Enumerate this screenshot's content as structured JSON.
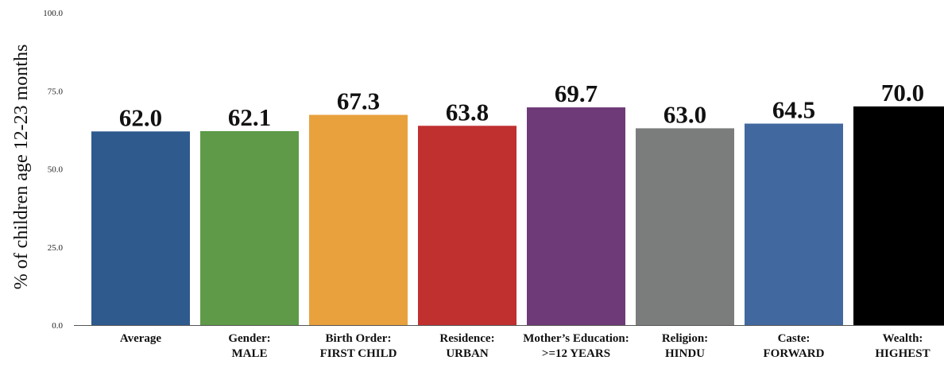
{
  "chart_data": {
    "type": "bar",
    "title": "",
    "xlabel": "",
    "ylabel": "% of children age 12-23 months",
    "ylim": [
      0,
      100
    ],
    "yticks": [
      "0.0",
      "25.0",
      "50.0",
      "75.0",
      "100.0"
    ],
    "ytick_values": [
      0,
      25,
      50,
      75,
      100
    ],
    "grid": false,
    "categories": [
      [
        "Average"
      ],
      [
        "Gender:",
        "MALE"
      ],
      [
        "Birth Order:",
        "FIRST CHILD"
      ],
      [
        "Residence:",
        "URBAN"
      ],
      [
        "Mother’s Education:",
        ">=12 YEARS"
      ],
      [
        "Religion:",
        "HINDU"
      ],
      [
        "Caste:",
        "FORWARD"
      ],
      [
        "Wealth:",
        "HIGHEST"
      ]
    ],
    "values": [
      62.0,
      62.1,
      67.3,
      63.8,
      69.7,
      63.0,
      64.5,
      70.0
    ],
    "value_labels": [
      "62.0",
      "62.1",
      "67.3",
      "63.8",
      "69.7",
      "63.0",
      "64.5",
      "70.0"
    ],
    "colors": [
      "#2E5A8E",
      "#5E9A48",
      "#E8A13C",
      "#C0302F",
      "#6E3A78",
      "#7B7D7D",
      "#4169A0",
      "#000000"
    ]
  }
}
